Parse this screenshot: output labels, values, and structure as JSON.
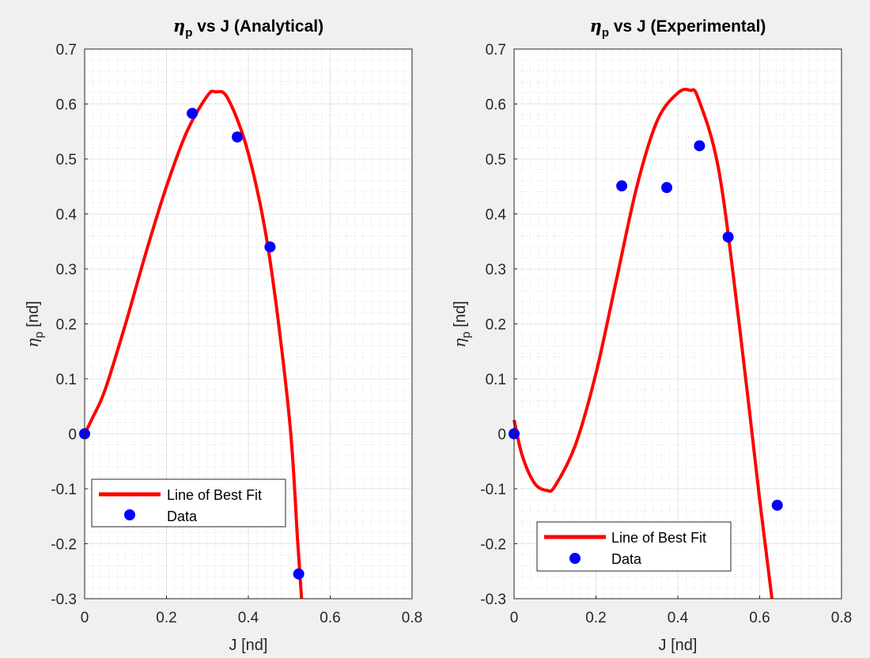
{
  "figure": {
    "background": "#f0f0f0"
  },
  "chart_data": [
    {
      "type": "line",
      "title_symbol": "η",
      "title_subscript": "p",
      "title_rest": " vs J (Analytical)",
      "xlabel": "J [nd]",
      "ylabel_symbol": "η",
      "ylabel_subscript": "p",
      "ylabel_rest": " [nd]",
      "xlim": [
        0,
        0.8
      ],
      "ylim": [
        -0.3,
        0.7
      ],
      "xticks": [
        "0",
        "0.2",
        "0.4",
        "0.6",
        "0.8"
      ],
      "yticks": [
        "-0.3",
        "-0.2",
        "-0.1",
        "0",
        "0.1",
        "0.2",
        "0.3",
        "0.4",
        "0.5",
        "0.6",
        "0.7"
      ],
      "grid": true,
      "minor_grid": true,
      "legend_position": "bottom-left",
      "series": [
        {
          "name": "Line of Best Fit",
          "type": "line",
          "color": "#ff0000",
          "x": [
            0,
            0.02,
            0.05,
            0.1,
            0.15,
            0.2,
            0.25,
            0.3,
            0.32,
            0.35,
            0.4,
            0.45,
            0.5,
            0.52,
            0.53
          ],
          "y": [
            0,
            0.03,
            0.08,
            0.2,
            0.33,
            0.45,
            0.55,
            0.615,
            0.622,
            0.61,
            0.51,
            0.33,
            0.03,
            -0.19,
            -0.3
          ]
        },
        {
          "name": "Data",
          "type": "scatter",
          "color": "#0000ff",
          "x": [
            0,
            0.263,
            0.373,
            0.453,
            0.523
          ],
          "y": [
            0,
            0.583,
            0.54,
            0.34,
            -0.255
          ]
        }
      ]
    },
    {
      "type": "line",
      "title_symbol": "η",
      "title_subscript": "p",
      "title_rest": " vs J (Experimental)",
      "xlabel": "J [nd]",
      "ylabel_symbol": "η",
      "ylabel_subscript": "p",
      "ylabel_rest": " [nd]",
      "xlim": [
        0,
        0.8
      ],
      "ylim": [
        -0.3,
        0.7
      ],
      "xticks": [
        "0",
        "0.2",
        "0.4",
        "0.6",
        "0.8"
      ],
      "yticks": [
        "-0.3",
        "-0.2",
        "-0.1",
        "0",
        "0.1",
        "0.2",
        "0.3",
        "0.4",
        "0.5",
        "0.6",
        "0.7"
      ],
      "grid": true,
      "minor_grid": true,
      "legend_position": "bottom-left",
      "series": [
        {
          "name": "Line of Best Fit",
          "type": "line",
          "color": "#ff0000",
          "x": [
            0,
            0.02,
            0.05,
            0.08,
            0.1,
            0.15,
            0.2,
            0.25,
            0.3,
            0.35,
            0.4,
            0.43,
            0.45,
            0.5,
            0.55,
            0.6,
            0.63
          ],
          "y": [
            0.025,
            -0.04,
            -0.09,
            -0.103,
            -0.095,
            -0.02,
            0.11,
            0.28,
            0.45,
            0.57,
            0.62,
            0.625,
            0.61,
            0.48,
            0.2,
            -0.12,
            -0.3
          ]
        },
        {
          "name": "Data",
          "type": "scatter",
          "color": "#0000ff",
          "x": [
            0,
            0.263,
            0.373,
            0.453,
            0.523,
            0.643
          ],
          "y": [
            0,
            0.451,
            0.448,
            0.524,
            0.358,
            -0.13
          ]
        }
      ]
    }
  ]
}
